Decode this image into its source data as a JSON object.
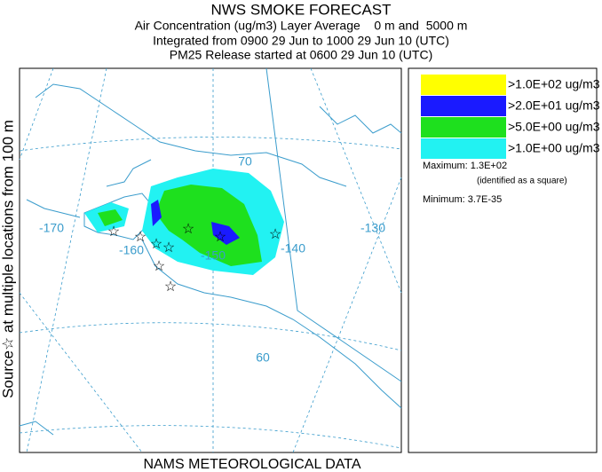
{
  "header": {
    "title": "NWS SMOKE FORECAST",
    "lines": [
      "Air Concentration (ug/m3) Layer Average    0 m and  5000 m",
      "Integrated from 0900 29 Jun to 1000 29 Jun 10 (UTC)",
      "PM25 Release started at 0600 29 Jun 10 (UTC)"
    ]
  },
  "side_label": "Source☆ at multiple locations from 100 m",
  "footer": "NAMS METEOROLOGICAL DATA",
  "legend": {
    "items": [
      {
        "label": ">1.0E+02 ug/m3",
        "color": "#ffff00"
      },
      {
        "label": ">2.0E+01 ug/m3",
        "color": "#1a1aff"
      },
      {
        "label": ">5.0E+00 ug/m3",
        "color": "#1ee01e"
      },
      {
        "label": ">1.0E+00 ug/m3",
        "color": "#22f2f2"
      }
    ],
    "maximum": "Maximum: 1.3E+02",
    "max_note": "(identified as a square)",
    "minimum": "Minimum: 3.7E-35"
  },
  "map": {
    "labels": [
      "-170",
      "-160",
      "-150",
      "-140",
      "-130",
      "70",
      "60"
    ]
  }
}
